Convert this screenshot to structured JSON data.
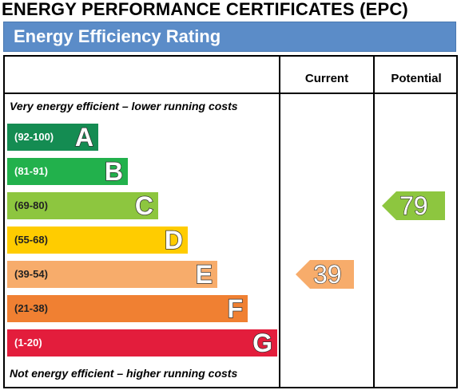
{
  "page_title": "ENERGY PERFORMANCE CERTIFICATES (EPC)",
  "banner": "Energy Efficiency Rating",
  "table": {
    "current_label": "Current",
    "potential_label": "Potential",
    "top_caption": "Very energy efficient – lower running costs",
    "bottom_caption": "Not energy efficient – higher running costs"
  },
  "colors": {
    "banner": "#5b8cc8"
  },
  "chart_data": {
    "type": "bar",
    "categories": [
      "A",
      "B",
      "C",
      "D",
      "E",
      "F",
      "G"
    ],
    "bands": [
      {
        "letter": "A",
        "range": "(92-100)",
        "min": 92,
        "color": "#148c52",
        "range_color": "#ffffff"
      },
      {
        "letter": "B",
        "range": "(81-91)",
        "min": 81,
        "color": "#22b14c",
        "range_color": "#ffffff"
      },
      {
        "letter": "C",
        "range": "(69-80)",
        "min": 69,
        "color": "#8dc63f",
        "range_color": "#222222"
      },
      {
        "letter": "D",
        "range": "(55-68)",
        "min": 55,
        "color": "#ffcc00",
        "range_color": "#222222"
      },
      {
        "letter": "E",
        "range": "(39-54)",
        "min": 39,
        "color": "#f7ac6b",
        "range_color": "#222222"
      },
      {
        "letter": "F",
        "range": "(21-38)",
        "min": 21,
        "color": "#f08032",
        "range_color": "#222222"
      },
      {
        "letter": "G",
        "range": "(1-20)",
        "min": 1,
        "color": "#e31d3c",
        "range_color": "#ffffff"
      }
    ],
    "current": {
      "value": 39,
      "band": "E",
      "color": "#f7ac6b"
    },
    "potential": {
      "value": 79,
      "band": "C",
      "color": "#8dc63f"
    }
  }
}
